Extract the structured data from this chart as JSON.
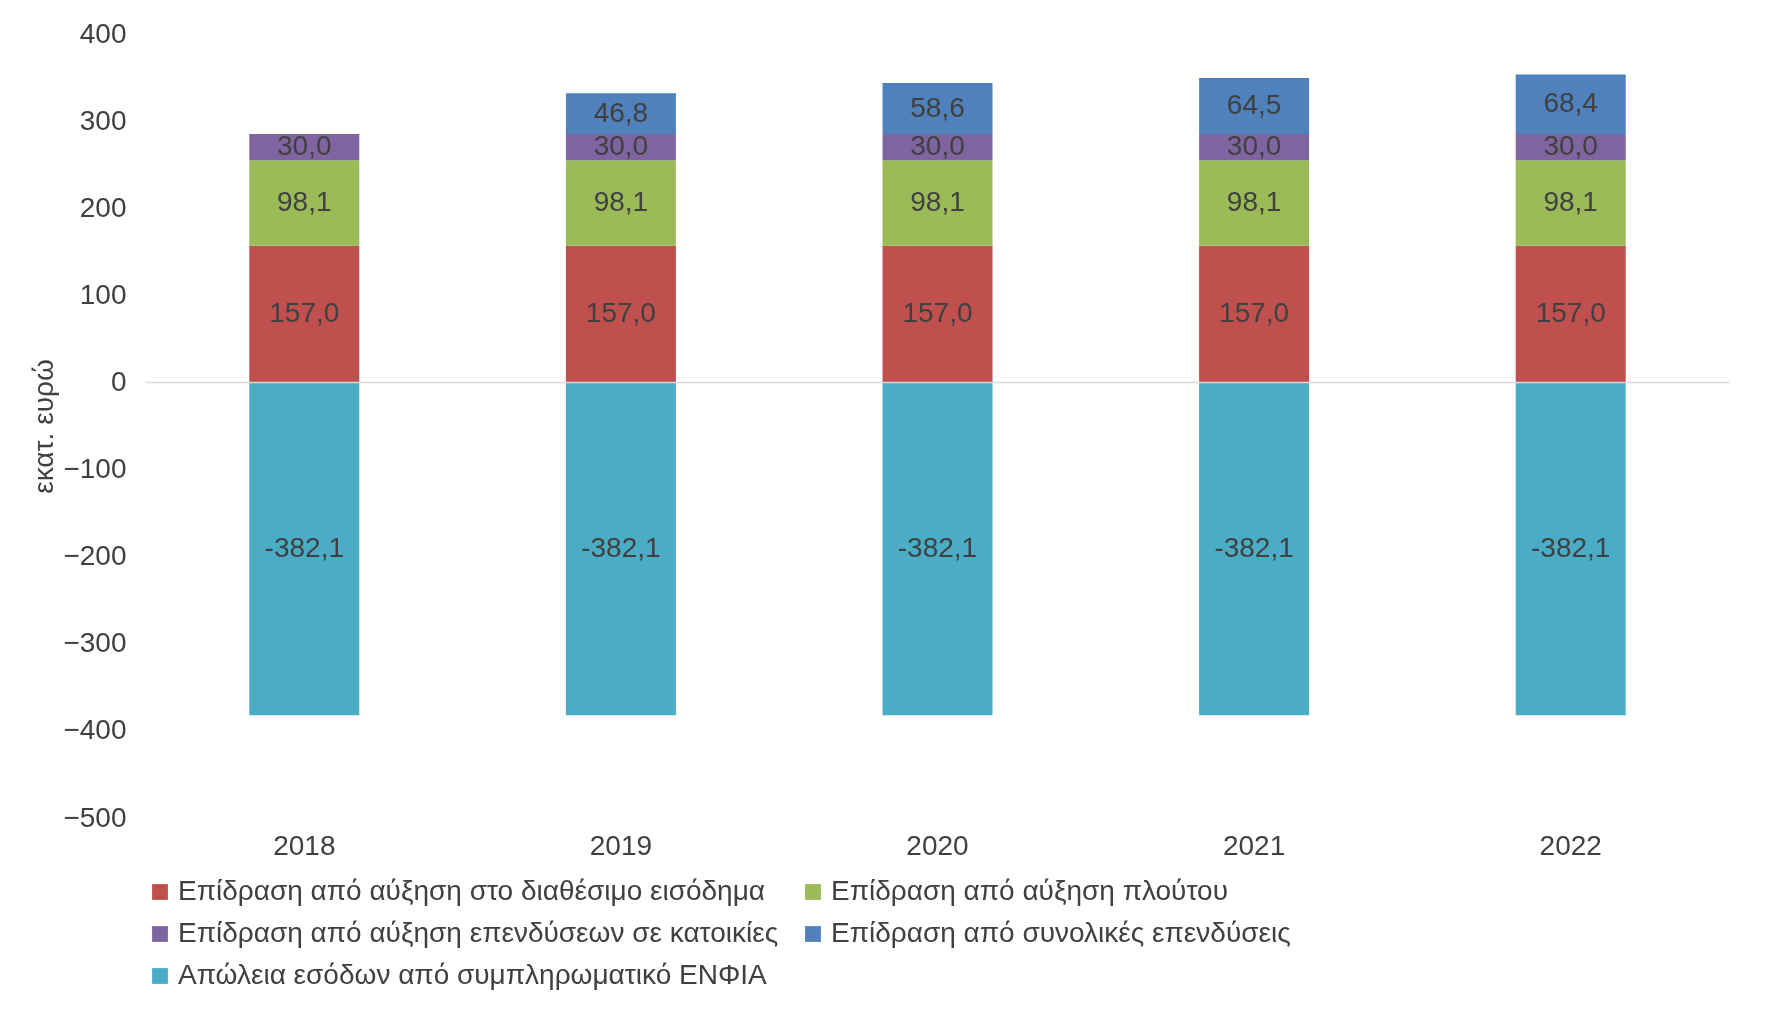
{
  "chart_data": {
    "type": "bar",
    "stacked": true,
    "ylabel": "εκατ. ευρώ",
    "categories": [
      "2018",
      "2019",
      "2020",
      "2021",
      "2022"
    ],
    "ylim": [
      -500,
      400
    ],
    "yticks": [
      -500,
      -400,
      -300,
      -200,
      -100,
      0,
      100,
      200,
      300,
      400
    ],
    "grid": false,
    "legend": "bottom",
    "ref_lines": [
      {
        "axis": "y",
        "value": 0,
        "color": "#d9d9d9"
      }
    ],
    "series": [
      {
        "name": "Επίδραση από αύξηση στο διαθέσιμο εισόδημα",
        "color": "#c0504d",
        "values": [
          157.0,
          157.0,
          157.0,
          157.0,
          157.0
        ],
        "value_labels": [
          "157,0",
          "157,0",
          "157,0",
          "157,0",
          "157,0"
        ]
      },
      {
        "name": "Επίδραση από αύξηση πλούτου",
        "color": "#9bbb59",
        "values": [
          98.1,
          98.1,
          98.1,
          98.1,
          98.1
        ],
        "value_labels": [
          "98,1",
          "98,1",
          "98,1",
          "98,1",
          "98,1"
        ]
      },
      {
        "name": "Επίδραση από αύξηση επενδύσεων σε κατοικίες",
        "color": "#8064a2",
        "values": [
          30.0,
          30.0,
          30.0,
          30.0,
          30.0
        ],
        "value_labels": [
          "30,0",
          "30,0",
          "30,0",
          "30,0",
          "30,0"
        ]
      },
      {
        "name": "Επίδραση από συνολικές επενδύσεις",
        "color": "#4f81bd",
        "values": [
          null,
          46.8,
          58.6,
          64.5,
          68.4
        ],
        "value_labels": [
          null,
          "46,8",
          "58,6",
          "64,5",
          "68,4"
        ]
      },
      {
        "name": "Απώλεια εσόδων από συμπληρωματικό ΕΝΦΙΑ",
        "color": "#4bacc6",
        "values": [
          -382.1,
          -382.1,
          -382.1,
          -382.1,
          -382.1
        ],
        "value_labels": [
          "-382,1",
          "-382,1",
          "-382,1",
          "-382,1",
          "-382,1"
        ]
      }
    ]
  }
}
